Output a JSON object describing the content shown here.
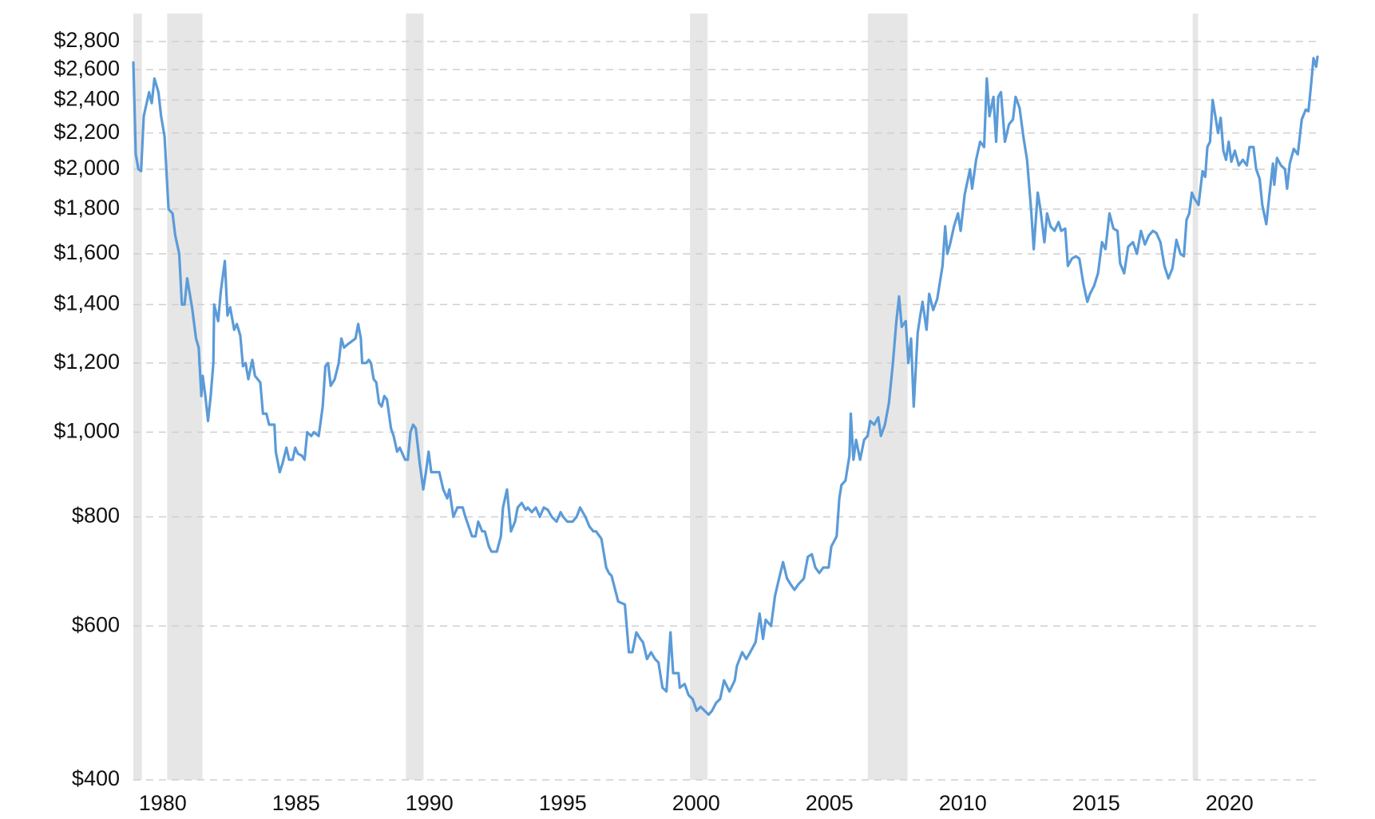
{
  "chart_data": {
    "type": "line",
    "log": true,
    "grid": true,
    "color": "#5b9bd8",
    "shade_color": "#e6e6e6",
    "xlim": [
      1978.9,
      2023.3
    ],
    "xticks": [
      1980,
      1985,
      1990,
      1995,
      2000,
      2005,
      2010,
      2015,
      2020
    ],
    "ylim": [
      400,
      2800
    ],
    "yticks": [
      {
        "value": 400,
        "label": "$400"
      },
      {
        "value": 600,
        "label": "$600"
      },
      {
        "value": 800,
        "label": "$800"
      },
      {
        "value": 1000,
        "label": "$1,000"
      },
      {
        "value": 1200,
        "label": "$1,200"
      },
      {
        "value": 1400,
        "label": "$1,400"
      },
      {
        "value": 1600,
        "label": "$1,600"
      },
      {
        "value": 1800,
        "label": "$1,800"
      },
      {
        "value": 2000,
        "label": "$2,000"
      },
      {
        "value": 2200,
        "label": "$2,200"
      },
      {
        "value": 2400,
        "label": "$2,400"
      },
      {
        "value": 2600,
        "label": "$2,600"
      },
      {
        "value": 2800,
        "label": "$2,800"
      }
    ],
    "shaded_ranges": [
      [
        1978.9,
        1979.22
      ],
      [
        1980.17,
        1981.49
      ],
      [
        1989.12,
        1989.78
      ],
      [
        1999.77,
        2000.43
      ],
      [
        2006.44,
        2007.93
      ],
      [
        2018.62,
        2018.82
      ]
    ],
    "x": [
      1978.9,
      1978.99,
      1979.09,
      1979.19,
      1979.29,
      1979.49,
      1979.59,
      1979.69,
      1979.84,
      1979.94,
      1980.07,
      1980.22,
      1980.37,
      1980.47,
      1980.62,
      1980.72,
      1980.82,
      1980.92,
      1981.0,
      1981.1,
      1981.25,
      1981.35,
      1981.45,
      1981.5,
      1981.6,
      1981.7,
      1981.8,
      1981.9,
      1981.93,
      1982.08,
      1982.18,
      1982.33,
      1982.43,
      1982.53,
      1982.68,
      1982.78,
      1982.91,
      1983.01,
      1983.11,
      1983.21,
      1983.36,
      1983.46,
      1983.66,
      1983.76,
      1983.89,
      1983.99,
      1984.19,
      1984.24,
      1984.39,
      1984.49,
      1984.64,
      1984.74,
      1984.87,
      1984.97,
      1985.07,
      1985.22,
      1985.32,
      1985.42,
      1985.57,
      1985.67,
      1985.85,
      1986.0,
      1986.1,
      1986.2,
      1986.3,
      1986.45,
      1986.6,
      1986.7,
      1986.8,
      1986.93,
      1987.08,
      1987.23,
      1987.33,
      1987.43,
      1987.48,
      1987.63,
      1987.73,
      1987.81,
      1987.91,
      1988.01,
      1988.11,
      1988.21,
      1988.31,
      1988.41,
      1988.56,
      1988.66,
      1988.79,
      1988.89,
      1989.09,
      1989.19,
      1989.29,
      1989.39,
      1989.49,
      1989.64,
      1989.77,
      1989.87,
      1989.97,
      1990.07,
      1990.22,
      1990.37,
      1990.52,
      1990.67,
      1990.75,
      1990.9,
      1991.05,
      1991.25,
      1991.35,
      1991.6,
      1991.73,
      1991.83,
      1991.98,
      1992.08,
      1992.23,
      1992.33,
      1992.53,
      1992.68,
      1992.76,
      1992.91,
      1993.06,
      1993.21,
      1993.31,
      1993.46,
      1993.61,
      1993.69,
      1993.84,
      1993.99,
      1994.14,
      1994.29,
      1994.44,
      1994.59,
      1994.77,
      1994.92,
      1995.02,
      1995.17,
      1995.37,
      1995.52,
      1995.65,
      1995.85,
      1996.0,
      1996.15,
      1996.25,
      1996.45,
      1996.63,
      1996.73,
      1996.83,
      1997.08,
      1997.33,
      1997.48,
      1997.61,
      1997.76,
      1997.91,
      1998.01,
      1998.16,
      1998.31,
      1998.46,
      1998.59,
      1998.74,
      1998.89,
      1999.04,
      1999.14,
      1999.34,
      1999.39,
      1999.57,
      1999.72,
      1999.87,
      2000.02,
      2000.17,
      2000.32,
      2000.47,
      2000.6,
      2000.75,
      2000.9,
      2001.05,
      2001.25,
      2001.45,
      2001.53,
      2001.73,
      2001.88,
      2002.03,
      2002.23,
      2002.38,
      2002.51,
      2002.61,
      2002.81,
      2002.96,
      2003.11,
      2003.26,
      2003.41,
      2003.54,
      2003.69,
      2003.84,
      2004.04,
      2004.19,
      2004.34,
      2004.47,
      2004.62,
      2004.77,
      2004.97,
      2005.07,
      2005.27,
      2005.37,
      2005.45,
      2005.6,
      2005.75,
      2005.8,
      2005.9,
      2006.0,
      2006.15,
      2006.3,
      2006.43,
      2006.53,
      2006.68,
      2006.83,
      2006.93,
      2007.08,
      2007.23,
      2007.38,
      2007.51,
      2007.61,
      2007.71,
      2007.86,
      2007.96,
      2008.06,
      2008.16,
      2008.31,
      2008.39,
      2008.49,
      2008.64,
      2008.74,
      2008.89,
      2009.04,
      2009.24,
      2009.34,
      2009.42,
      2009.52,
      2009.67,
      2009.82,
      2009.92,
      2010.07,
      2010.27,
      2010.35,
      2010.5,
      2010.65,
      2010.8,
      2010.9,
      2011.0,
      2011.15,
      2011.25,
      2011.33,
      2011.43,
      2011.58,
      2011.73,
      2011.88,
      2011.98,
      2012.13,
      2012.28,
      2012.41,
      2012.56,
      2012.66,
      2012.81,
      2012.91,
      2013.06,
      2013.16,
      2013.29,
      2013.44,
      2013.59,
      2013.69,
      2013.84,
      2013.94,
      2014.09,
      2014.24,
      2014.37,
      2014.52,
      2014.67,
      2014.77,
      2014.92,
      2015.07,
      2015.22,
      2015.35,
      2015.5,
      2015.65,
      2015.8,
      2015.9,
      2016.05,
      2016.2,
      2016.38,
      2016.53,
      2016.68,
      2016.83,
      2016.98,
      2017.13,
      2017.26,
      2017.41,
      2017.56,
      2017.71,
      2017.86,
      2018.01,
      2018.16,
      2018.29,
      2018.39,
      2018.49,
      2018.59,
      2018.69,
      2018.84,
      2018.99,
      2019.09,
      2019.17,
      2019.27,
      2019.37,
      2019.47,
      2019.57,
      2019.67,
      2019.77,
      2019.87,
      2019.97,
      2020.07,
      2020.2,
      2020.35,
      2020.5,
      2020.65,
      2020.75,
      2020.9,
      2021.0,
      2021.13,
      2021.23,
      2021.38,
      2021.48,
      2021.63,
      2021.68,
      2021.78,
      2021.93,
      2022.08,
      2022.16,
      2022.26,
      2022.41,
      2022.56,
      2022.71,
      2022.86,
      2022.96,
      2023.06,
      2023.15,
      2023.25,
      2023.3
    ],
    "values": [
      2650,
      2080,
      2000,
      1990,
      2300,
      2450,
      2380,
      2540,
      2450,
      2300,
      2180,
      1800,
      1780,
      1680,
      1600,
      1400,
      1400,
      1500,
      1450,
      1390,
      1280,
      1250,
      1100,
      1160,
      1100,
      1030,
      1100,
      1200,
      1400,
      1340,
      1450,
      1570,
      1360,
      1390,
      1310,
      1330,
      1290,
      1190,
      1200,
      1150,
      1210,
      1160,
      1140,
      1050,
      1050,
      1020,
      1020,
      950,
      900,
      920,
      960,
      930,
      930,
      960,
      945,
      940,
      930,
      1000,
      990,
      1000,
      990,
      1070,
      1190,
      1200,
      1130,
      1150,
      1200,
      1280,
      1250,
      1260,
      1270,
      1280,
      1330,
      1280,
      1200,
      1200,
      1210,
      1200,
      1150,
      1140,
      1080,
      1070,
      1100,
      1090,
      1010,
      990,
      950,
      960,
      930,
      930,
      1000,
      1020,
      1010,
      920,
      860,
      900,
      950,
      900,
      900,
      900,
      860,
      840,
      860,
      800,
      820,
      820,
      800,
      760,
      760,
      790,
      770,
      770,
      740,
      730,
      730,
      760,
      820,
      860,
      770,
      790,
      820,
      830,
      815,
      820,
      810,
      820,
      800,
      820,
      815,
      800,
      790,
      810,
      800,
      790,
      790,
      800,
      820,
      800,
      780,
      770,
      770,
      755,
      700,
      690,
      685,
      640,
      635,
      560,
      560,
      590,
      580,
      575,
      550,
      560,
      550,
      545,
      510,
      505,
      590,
      530,
      530,
      510,
      515,
      500,
      495,
      480,
      485,
      480,
      475,
      480,
      490,
      495,
      520,
      505,
      520,
      540,
      560,
      550,
      560,
      575,
      620,
      580,
      610,
      600,
      650,
      680,
      710,
      680,
      670,
      660,
      670,
      680,
      720,
      725,
      700,
      690,
      700,
      700,
      740,
      760,
      840,
      870,
      880,
      940,
      1050,
      930,
      980,
      930,
      980,
      990,
      1030,
      1020,
      1040,
      990,
      1020,
      1080,
      1200,
      1340,
      1430,
      1320,
      1340,
      1200,
      1280,
      1070,
      1300,
      1350,
      1410,
      1310,
      1440,
      1380,
      1420,
      1550,
      1720,
      1600,
      1640,
      1720,
      1780,
      1700,
      1870,
      2000,
      1900,
      2050,
      2150,
      2120,
      2540,
      2300,
      2420,
      2150,
      2420,
      2450,
      2150,
      2250,
      2280,
      2420,
      2350,
      2170,
      2050,
      1800,
      1620,
      1880,
      1800,
      1650,
      1780,
      1720,
      1700,
      1740,
      1700,
      1710,
      1550,
      1580,
      1590,
      1580,
      1480,
      1410,
      1440,
      1470,
      1520,
      1650,
      1620,
      1780,
      1710,
      1700,
      1560,
      1520,
      1630,
      1650,
      1600,
      1700,
      1640,
      1680,
      1700,
      1690,
      1650,
      1550,
      1500,
      1540,
      1660,
      1600,
      1590,
      1750,
      1780,
      1880,
      1850,
      1820,
      1990,
      1960,
      2120,
      2150,
      2400,
      2300,
      2200,
      2290,
      2100,
      2050,
      2150,
      2040,
      2100,
      2020,
      2050,
      2020,
      2120,
      2120,
      2000,
      1950,
      1820,
      1730,
      1850,
      2030,
      1920,
      2060,
      2020,
      2000,
      1900,
      2030,
      2110,
      2080,
      2280,
      2340,
      2330,
      2500,
      2680,
      2620,
      2690
    ]
  }
}
